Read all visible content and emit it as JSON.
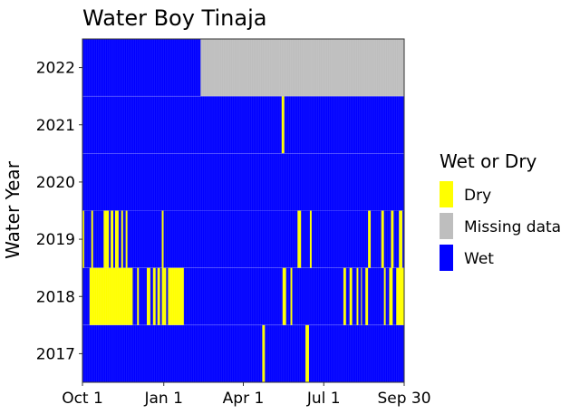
{
  "chart_data": {
    "type": "heatmap",
    "title": "Water Boy Tinaja",
    "xlabel": "",
    "ylabel": "Water Year",
    "x_ticks": [
      {
        "label": "Oct 1",
        "day": 0
      },
      {
        "label": "Jan 1",
        "day": 92
      },
      {
        "label": "Apr 1",
        "day": 182
      },
      {
        "label": "Jul 1",
        "day": 273
      },
      {
        "label": "Sep 30",
        "day": 364
      }
    ],
    "days_in_year": 365,
    "years": [
      2017,
      2018,
      2019,
      2020,
      2021,
      2022
    ],
    "default_state": "Wet",
    "legend": {
      "title": "Wet or Dry",
      "placement": "right",
      "items": [
        {
          "label": "Dry",
          "color": "#ffff00"
        },
        {
          "label": "Missing data",
          "color": "#bebebe"
        },
        {
          "label": "Wet",
          "color": "#0000ff"
        }
      ]
    },
    "segments": [
      {
        "year": 2017,
        "state": "Dry",
        "start_day": 204,
        "end_day": 207
      },
      {
        "year": 2017,
        "state": "Dry",
        "start_day": 253,
        "end_day": 257
      },
      {
        "year": 2018,
        "state": "Dry",
        "start_day": 8,
        "end_day": 57
      },
      {
        "year": 2018,
        "state": "Dry",
        "start_day": 62,
        "end_day": 64
      },
      {
        "year": 2018,
        "state": "Dry",
        "start_day": 73,
        "end_day": 77
      },
      {
        "year": 2018,
        "state": "Dry",
        "start_day": 80,
        "end_day": 83
      },
      {
        "year": 2018,
        "state": "Dry",
        "start_day": 85,
        "end_day": 88
      },
      {
        "year": 2018,
        "state": "Dry",
        "start_day": 90,
        "end_day": 95
      },
      {
        "year": 2018,
        "state": "Dry",
        "start_day": 97,
        "end_day": 115
      },
      {
        "year": 2018,
        "state": "Dry",
        "start_day": 227,
        "end_day": 231
      },
      {
        "year": 2018,
        "state": "Dry",
        "start_day": 236,
        "end_day": 238
      },
      {
        "year": 2018,
        "state": "Dry",
        "start_day": 296,
        "end_day": 299
      },
      {
        "year": 2018,
        "state": "Dry",
        "start_day": 303,
        "end_day": 306
      },
      {
        "year": 2018,
        "state": "Dry",
        "start_day": 311,
        "end_day": 313
      },
      {
        "year": 2018,
        "state": "Dry",
        "start_day": 316,
        "end_day": 317
      },
      {
        "year": 2018,
        "state": "Dry",
        "start_day": 321,
        "end_day": 324
      },
      {
        "year": 2018,
        "state": "Dry",
        "start_day": 342,
        "end_day": 344
      },
      {
        "year": 2018,
        "state": "Dry",
        "start_day": 348,
        "end_day": 352
      },
      {
        "year": 2018,
        "state": "Dry",
        "start_day": 356,
        "end_day": 365
      },
      {
        "year": 2019,
        "state": "Dry",
        "start_day": 0,
        "end_day": 2
      },
      {
        "year": 2019,
        "state": "Dry",
        "start_day": 10,
        "end_day": 12
      },
      {
        "year": 2019,
        "state": "Dry",
        "start_day": 24,
        "end_day": 30
      },
      {
        "year": 2019,
        "state": "Dry",
        "start_day": 32,
        "end_day": 35
      },
      {
        "year": 2019,
        "state": "Dry",
        "start_day": 37,
        "end_day": 41
      },
      {
        "year": 2019,
        "state": "Dry",
        "start_day": 44,
        "end_day": 46
      },
      {
        "year": 2019,
        "state": "Dry",
        "start_day": 49,
        "end_day": 51
      },
      {
        "year": 2019,
        "state": "Dry",
        "start_day": 90,
        "end_day": 92
      },
      {
        "year": 2019,
        "state": "Dry",
        "start_day": 244,
        "end_day": 248
      },
      {
        "year": 2019,
        "state": "Dry",
        "start_day": 258,
        "end_day": 260
      },
      {
        "year": 2019,
        "state": "Dry",
        "start_day": 324,
        "end_day": 327
      },
      {
        "year": 2019,
        "state": "Dry",
        "start_day": 339,
        "end_day": 342
      },
      {
        "year": 2019,
        "state": "Dry",
        "start_day": 350,
        "end_day": 353
      },
      {
        "year": 2019,
        "state": "Dry",
        "start_day": 359,
        "end_day": 363
      },
      {
        "year": 2021,
        "state": "Dry",
        "start_day": 226,
        "end_day": 229
      },
      {
        "year": 2022,
        "state": "Missing data",
        "start_day": 134,
        "end_day": 365
      }
    ]
  }
}
